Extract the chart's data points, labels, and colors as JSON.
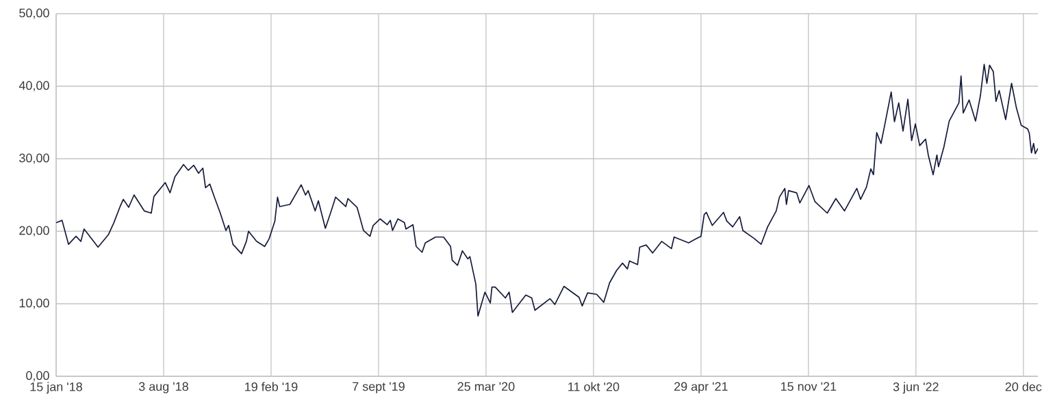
{
  "chart_data": {
    "type": "line",
    "x": [
      "2018-01-16",
      "2018-01-26",
      "2018-02-07",
      "2018-02-21",
      "2018-03-02",
      "2018-03-08",
      "2018-04-03",
      "2018-04-22",
      "2018-05-02",
      "2018-05-14",
      "2018-05-20",
      "2018-05-30",
      "2018-06-09",
      "2018-06-28",
      "2018-07-11",
      "2018-07-16",
      "2018-08-06",
      "2018-08-15",
      "2018-08-24",
      "2018-09-09",
      "2018-09-18",
      "2018-09-28",
      "2018-10-07",
      "2018-10-15",
      "2018-10-20",
      "2018-10-28",
      "2018-11-06",
      "2018-11-16",
      "2018-11-27",
      "2018-12-02",
      "2018-12-10",
      "2018-12-26",
      "2019-01-04",
      "2019-01-08",
      "2019-01-23",
      "2019-02-07",
      "2019-02-15",
      "2019-02-26",
      "2019-03-03",
      "2019-03-07",
      "2019-03-26",
      "2019-04-16",
      "2019-04-24",
      "2019-04-29",
      "2019-05-12",
      "2019-05-18",
      "2019-05-31",
      "2019-06-10",
      "2019-06-19",
      "2019-07-08",
      "2019-07-12",
      "2019-07-29",
      "2019-08-10",
      "2019-08-22",
      "2019-08-28",
      "2019-09-10",
      "2019-09-23",
      "2019-09-29",
      "2019-10-03",
      "2019-10-13",
      "2019-10-25",
      "2019-10-28",
      "2019-11-10",
      "2019-11-16",
      "2019-11-27",
      "2019-12-03",
      "2019-12-22",
      "2020-01-06",
      "2020-01-19",
      "2020-01-22",
      "2020-02-01",
      "2020-02-10",
      "2020-02-20",
      "2020-02-24",
      "2020-03-06",
      "2020-03-10",
      "2020-03-17",
      "2020-03-23",
      "2020-04-02",
      "2020-04-05",
      "2020-04-11",
      "2020-04-30",
      "2020-05-07",
      "2020-05-13",
      "2020-06-07",
      "2020-06-18",
      "2020-06-24",
      "2020-07-22",
      "2020-07-31",
      "2020-08-17",
      "2020-09-14",
      "2020-09-20",
      "2020-09-30",
      "2020-10-17",
      "2020-10-30",
      "2020-11-10",
      "2020-11-23",
      "2020-12-04",
      "2020-12-13",
      "2020-12-17",
      "2021-01-01",
      "2021-01-05",
      "2021-01-17",
      "2021-01-29",
      "2021-02-15",
      "2021-03-05",
      "2021-03-10",
      "2021-04-06",
      "2021-04-18",
      "2021-04-29",
      "2021-05-05",
      "2021-05-09",
      "2021-05-20",
      "2021-06-10",
      "2021-06-16",
      "2021-06-27",
      "2021-07-10",
      "2021-07-16",
      "2021-08-06",
      "2021-08-19",
      "2021-08-31",
      "2021-09-16",
      "2021-09-22",
      "2021-10-02",
      "2021-10-05",
      "2021-10-09",
      "2021-10-24",
      "2021-10-30",
      "2021-11-16",
      "2021-11-27",
      "2021-12-20",
      "2022-01-05",
      "2022-01-21",
      "2022-02-13",
      "2022-02-20",
      "2022-03-03",
      "2022-03-11",
      "2022-03-16",
      "2022-03-22",
      "2022-03-30",
      "2022-04-05",
      "2022-04-18",
      "2022-04-24",
      "2022-05-02",
      "2022-05-10",
      "2022-05-19",
      "2022-05-26",
      "2022-06-02",
      "2022-06-10",
      "2022-06-21",
      "2022-06-26",
      "2022-07-05",
      "2022-07-12",
      "2022-07-15",
      "2022-07-25",
      "2022-08-04",
      "2022-08-22",
      "2022-08-26",
      "2022-08-30",
      "2022-09-10",
      "2022-09-22",
      "2022-10-01",
      "2022-10-08",
      "2022-10-13",
      "2022-10-18",
      "2022-10-25",
      "2022-10-30",
      "2022-11-05",
      "2022-11-17",
      "2022-11-28",
      "2022-12-07",
      "2022-12-16",
      "2022-12-28",
      "2022-12-31",
      "2023-01-04",
      "2023-01-08",
      "2023-01-11",
      "2023-01-16"
    ],
    "series": [
      {
        "color": "#151a3a",
        "values": [
          21.2,
          21.5,
          18.2,
          19.3,
          18.6,
          20.3,
          17.8,
          19.5,
          21.1,
          23.4,
          24.4,
          23.3,
          25.0,
          22.8,
          22.5,
          24.8,
          26.7,
          25.3,
          27.5,
          29.2,
          28.4,
          29.1,
          28.0,
          28.7,
          26.0,
          26.5,
          24.6,
          22.6,
          20.1,
          20.8,
          18.2,
          16.9,
          18.6,
          20.0,
          18.6,
          17.9,
          18.9,
          21.4,
          24.7,
          23.4,
          23.7,
          26.4,
          25.0,
          25.6,
          22.8,
          24.2,
          20.4,
          22.6,
          24.7,
          23.4,
          24.5,
          23.3,
          20.1,
          19.3,
          20.8,
          21.7,
          20.9,
          21.5,
          20.1,
          21.7,
          21.2,
          20.3,
          20.9,
          17.9,
          17.1,
          18.4,
          19.2,
          19.2,
          17.9,
          16.0,
          15.3,
          17.3,
          16.2,
          16.5,
          12.7,
          8.3,
          10.1,
          11.6,
          10.1,
          12.3,
          12.3,
          10.8,
          11.6,
          8.8,
          11.2,
          10.8,
          9.1,
          10.7,
          9.9,
          12.4,
          10.9,
          9.7,
          11.5,
          11.3,
          10.2,
          12.9,
          14.6,
          15.6,
          14.8,
          15.9,
          15.4,
          17.8,
          18.1,
          17.0,
          18.6,
          17.6,
          19.2,
          18.4,
          18.9,
          19.3,
          22.3,
          22.6,
          20.8,
          22.6,
          21.4,
          20.6,
          22.0,
          20.1,
          19.0,
          18.2,
          20.6,
          22.8,
          24.7,
          25.9,
          23.7,
          25.6,
          25.3,
          23.9,
          26.3,
          24.1,
          22.5,
          24.5,
          22.8,
          25.9,
          24.4,
          26.1,
          28.6,
          27.8,
          33.6,
          32.1,
          34.3,
          39.2,
          35.1,
          37.7,
          33.8,
          38.2,
          32.5,
          34.8,
          31.8,
          32.7,
          30.5,
          27.8,
          30.5,
          28.9,
          31.6,
          35.2,
          37.7,
          41.4,
          36.3,
          38.1,
          35.2,
          38.7,
          43.0,
          40.4,
          42.9,
          42.0,
          37.9,
          39.4,
          35.4,
          40.4,
          37.0,
          34.6,
          34.1,
          33.5,
          30.8,
          32.1,
          30.7,
          31.4
        ]
      }
    ],
    "xlim": [
      "2018-01-15",
      "2023-01-16"
    ],
    "xticks": [
      {
        "value": "2018-01-15",
        "label": "15 jan '18"
      },
      {
        "value": "2018-08-03",
        "label": "3 aug '18"
      },
      {
        "value": "2019-02-19",
        "label": "19 feb '19"
      },
      {
        "value": "2019-09-07",
        "label": "7 sept '19"
      },
      {
        "value": "2020-03-25",
        "label": "25 mar '20"
      },
      {
        "value": "2020-10-11",
        "label": "11 okt '20"
      },
      {
        "value": "2021-04-29",
        "label": "29 apr '21"
      },
      {
        "value": "2021-11-15",
        "label": "15 nov '21"
      },
      {
        "value": "2022-06-03",
        "label": "3 jun '22"
      },
      {
        "value": "2022-12-20",
        "label": "20 dec"
      }
    ],
    "ylim": [
      0,
      50
    ],
    "yticks": [
      {
        "value": 0,
        "label": "0,00"
      },
      {
        "value": 10,
        "label": "10,00"
      },
      {
        "value": 20,
        "label": "20,00"
      },
      {
        "value": 30,
        "label": "30,00"
      },
      {
        "value": 40,
        "label": "40,00"
      },
      {
        "value": 50,
        "label": "50,00"
      }
    ],
    "grid": true,
    "line_style": "solid"
  }
}
